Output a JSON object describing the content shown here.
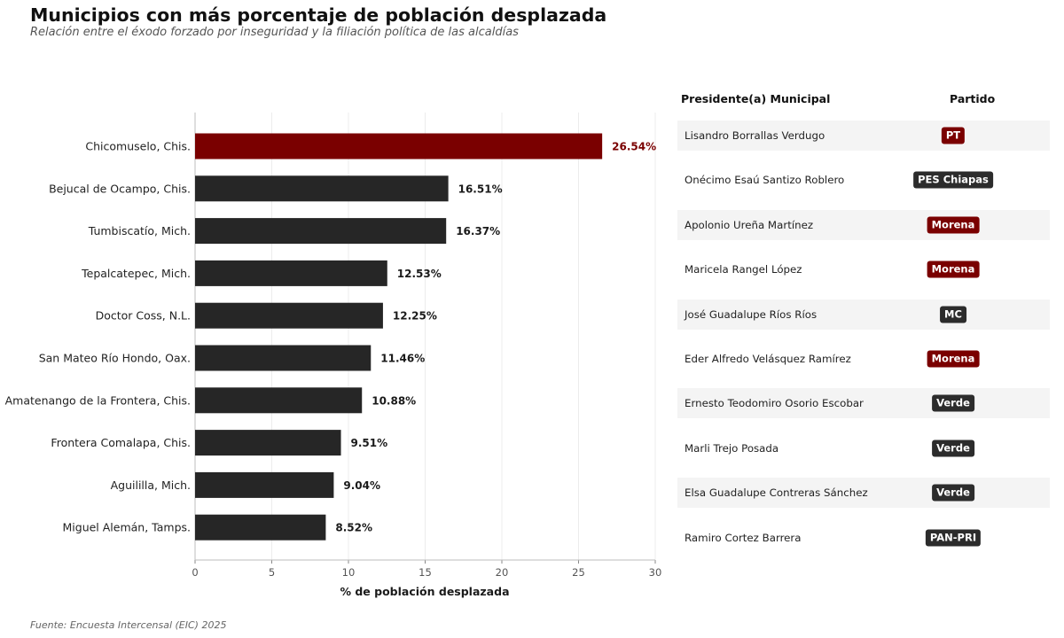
{
  "title": "Municipios con más porcentaje de población desplazada",
  "subtitle": "Relación entre el éxodo forzado por inseguridad y la filiación política de las alcaldías",
  "source": "Fuente: Encuesta Intercensal (EIC) 2025",
  "colors": {
    "highlight": "#7a0000",
    "default_bar": "#262626",
    "dark_badge": "#2c2c2c"
  },
  "chart_data": {
    "type": "bar",
    "orientation": "horizontal",
    "categories": [
      "Chicomuselo, Chis.",
      "Bejucal de Ocampo, Chis.",
      "Tumbiscatío, Mich.",
      "Tepalcatepec, Mich.",
      "Doctor Coss, N.L.",
      "San Mateo Río Hondo, Oax.",
      "Amatenango de la Frontera, Chis.",
      "Frontera Comalapa, Chis.",
      "Aguililla, Mich.",
      "Miguel Alemán, Tamps."
    ],
    "values": [
      26.54,
      16.51,
      16.37,
      12.53,
      12.25,
      11.46,
      10.88,
      9.51,
      9.04,
      8.52
    ],
    "value_labels": [
      "26.54%",
      "16.51%",
      "16.37%",
      "12.53%",
      "12.25%",
      "11.46%",
      "10.88%",
      "9.51%",
      "9.04%",
      "8.52%"
    ],
    "highlight_index": 0,
    "xlabel": "% de población desplazada",
    "xlim": [
      0,
      30
    ],
    "xticks": [
      0,
      5,
      10,
      15,
      20,
      25,
      30
    ],
    "grid": "vertical"
  },
  "table": {
    "headers": {
      "name": "Presidente(a) Municipal",
      "party": "Partido"
    },
    "rows": [
      {
        "name": "Lisandro Borrallas Verdugo",
        "party": "PT",
        "badge_color": "#7a0000"
      },
      {
        "name": "Onécimo Esaú Santizo Roblero",
        "party": "PES Chiapas",
        "badge_color": "#2c2c2c"
      },
      {
        "name": "Apolonio Ureña Martínez",
        "party": "Morena",
        "badge_color": "#7a0000"
      },
      {
        "name": "Maricela Rangel López",
        "party": "Morena",
        "badge_color": "#7a0000"
      },
      {
        "name": "José Guadalupe Ríos Ríos",
        "party": "MC",
        "badge_color": "#2c2c2c"
      },
      {
        "name": "Eder Alfredo Velásquez Ramírez",
        "party": "Morena",
        "badge_color": "#7a0000"
      },
      {
        "name": "Ernesto Teodomiro Osorio Escobar",
        "party": "Verde",
        "badge_color": "#2c2c2c"
      },
      {
        "name": "Marli Trejo Posada",
        "party": "Verde",
        "badge_color": "#2c2c2c"
      },
      {
        "name": "Elsa Guadalupe Contreras Sánchez",
        "party": "Verde",
        "badge_color": "#2c2c2c"
      },
      {
        "name": "Ramiro Cortez Barrera",
        "party": "PAN-PRI",
        "badge_color": "#2c2c2c"
      }
    ]
  }
}
